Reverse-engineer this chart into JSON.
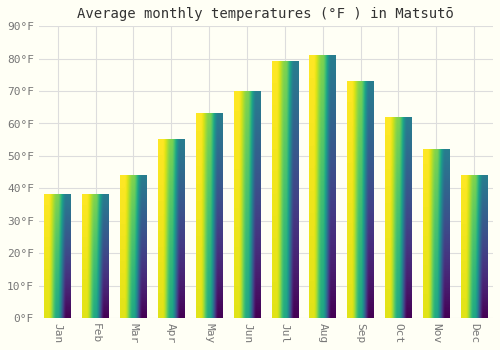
{
  "title": "Average monthly temperatures (°F ) in Matsutō",
  "months": [
    "Jan",
    "Feb",
    "Mar",
    "Apr",
    "May",
    "Jun",
    "Jul",
    "Aug",
    "Sep",
    "Oct",
    "Nov",
    "Dec"
  ],
  "values": [
    38,
    38,
    44,
    55,
    63,
    70,
    79,
    81,
    73,
    62,
    52,
    44
  ],
  "bar_color_top": "#F5A623",
  "bar_color_bottom": "#FFD580",
  "ylim": [
    0,
    90
  ],
  "yticks": [
    0,
    10,
    20,
    30,
    40,
    50,
    60,
    70,
    80,
    90
  ],
  "ytick_labels": [
    "0°F",
    "10°F",
    "20°F",
    "30°F",
    "40°F",
    "50°F",
    "60°F",
    "70°F",
    "80°F",
    "90°F"
  ],
  "background_color": "#FFFFF5",
  "grid_color": "#DDDDDD",
  "title_fontsize": 10,
  "tick_fontsize": 8,
  "font_family": "monospace"
}
